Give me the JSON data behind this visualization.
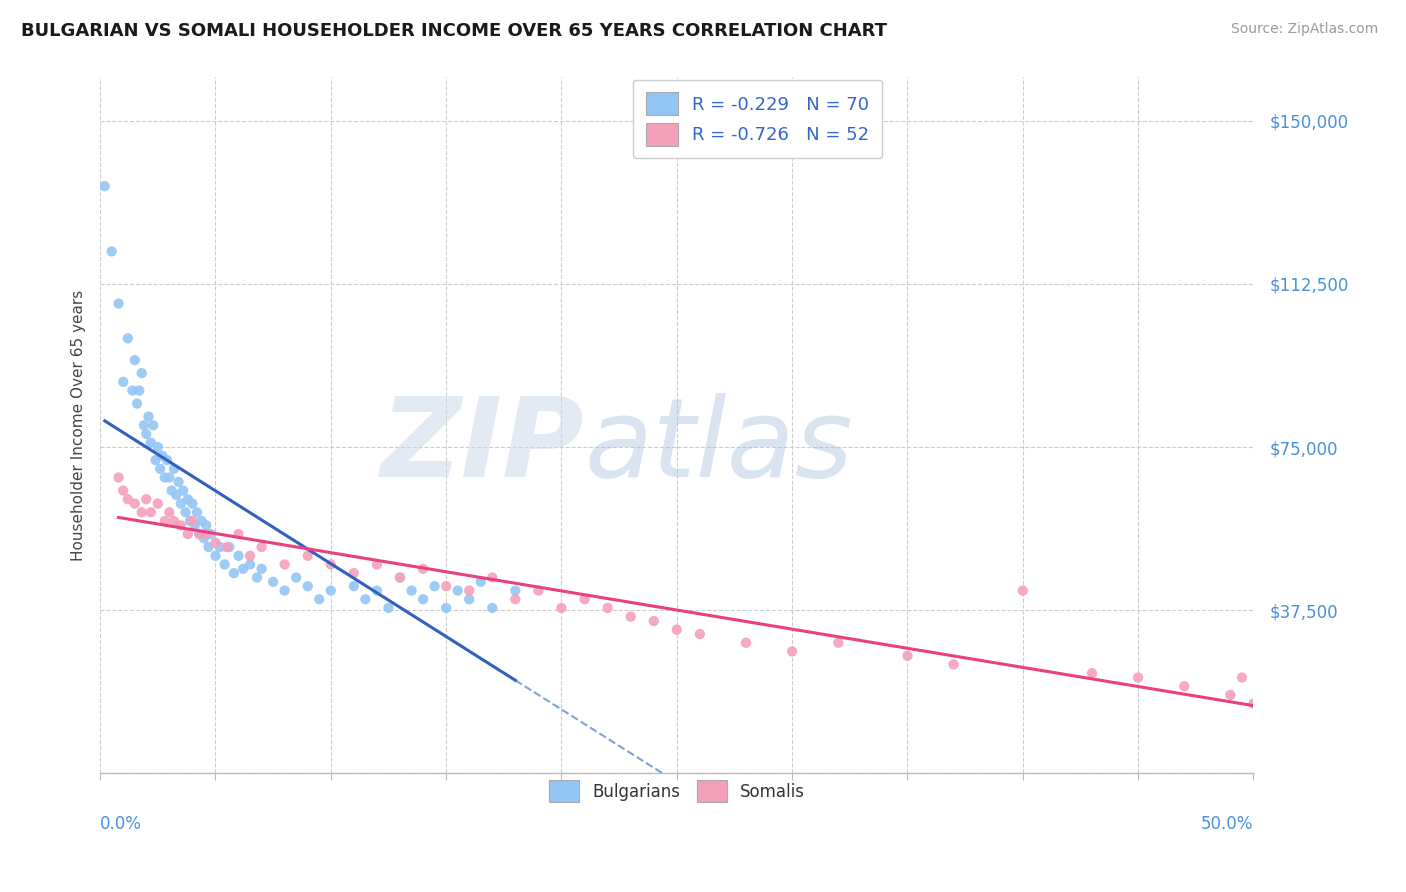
{
  "title": "BULGARIAN VS SOMALI HOUSEHOLDER INCOME OVER 65 YEARS CORRELATION CHART",
  "source": "Source: ZipAtlas.com",
  "ylabel": "Householder Income Over 65 years",
  "y_ticks": [
    0,
    37500,
    75000,
    112500,
    150000
  ],
  "x_range": [
    0.0,
    0.5
  ],
  "y_range": [
    0,
    160000
  ],
  "legend_labels": [
    "Bulgarians",
    "Somalis"
  ],
  "bulgarian_R": "-0.229",
  "bulgarian_N": "70",
  "somali_R": "-0.726",
  "somali_N": "52",
  "bulgarian_color": "#93c6f5",
  "somali_color": "#f5a0ba",
  "bulgarian_line_color": "#3060c0",
  "somali_line_color": "#e84080",
  "background_color": "#ffffff",
  "bulgarian_x": [
    0.002,
    0.005,
    0.008,
    0.01,
    0.012,
    0.014,
    0.015,
    0.016,
    0.017,
    0.018,
    0.019,
    0.02,
    0.021,
    0.022,
    0.023,
    0.024,
    0.025,
    0.026,
    0.027,
    0.028,
    0.029,
    0.03,
    0.031,
    0.032,
    0.033,
    0.034,
    0.035,
    0.036,
    0.037,
    0.038,
    0.039,
    0.04,
    0.041,
    0.042,
    0.043,
    0.044,
    0.045,
    0.046,
    0.047,
    0.048,
    0.05,
    0.052,
    0.054,
    0.056,
    0.058,
    0.06,
    0.062,
    0.065,
    0.068,
    0.07,
    0.075,
    0.08,
    0.085,
    0.09,
    0.095,
    0.1,
    0.11,
    0.115,
    0.12,
    0.125,
    0.13,
    0.135,
    0.14,
    0.145,
    0.15,
    0.155,
    0.16,
    0.165,
    0.17,
    0.18
  ],
  "bulgarian_y": [
    135000,
    120000,
    108000,
    90000,
    100000,
    88000,
    95000,
    85000,
    88000,
    92000,
    80000,
    78000,
    82000,
    76000,
    80000,
    72000,
    75000,
    70000,
    73000,
    68000,
    72000,
    68000,
    65000,
    70000,
    64000,
    67000,
    62000,
    65000,
    60000,
    63000,
    58000,
    62000,
    57000,
    60000,
    55000,
    58000,
    54000,
    57000,
    52000,
    55000,
    50000,
    52000,
    48000,
    52000,
    46000,
    50000,
    47000,
    48000,
    45000,
    47000,
    44000,
    42000,
    45000,
    43000,
    40000,
    42000,
    43000,
    40000,
    42000,
    38000,
    45000,
    42000,
    40000,
    43000,
    38000,
    42000,
    40000,
    44000,
    38000,
    42000
  ],
  "somali_x": [
    0.008,
    0.01,
    0.012,
    0.015,
    0.018,
    0.02,
    0.022,
    0.025,
    0.028,
    0.03,
    0.032,
    0.035,
    0.038,
    0.04,
    0.043,
    0.046,
    0.05,
    0.055,
    0.06,
    0.065,
    0.07,
    0.08,
    0.09,
    0.1,
    0.11,
    0.12,
    0.13,
    0.14,
    0.15,
    0.16,
    0.17,
    0.18,
    0.19,
    0.2,
    0.21,
    0.22,
    0.23,
    0.24,
    0.25,
    0.26,
    0.28,
    0.3,
    0.32,
    0.35,
    0.37,
    0.4,
    0.43,
    0.45,
    0.47,
    0.49,
    0.495,
    0.5
  ],
  "somali_y": [
    68000,
    65000,
    63000,
    62000,
    60000,
    63000,
    60000,
    62000,
    58000,
    60000,
    58000,
    57000,
    55000,
    58000,
    55000,
    55000,
    53000,
    52000,
    55000,
    50000,
    52000,
    48000,
    50000,
    48000,
    46000,
    48000,
    45000,
    47000,
    43000,
    42000,
    45000,
    40000,
    42000,
    38000,
    40000,
    38000,
    36000,
    35000,
    33000,
    32000,
    30000,
    28000,
    30000,
    27000,
    25000,
    42000,
    23000,
    22000,
    20000,
    18000,
    22000,
    16000
  ]
}
